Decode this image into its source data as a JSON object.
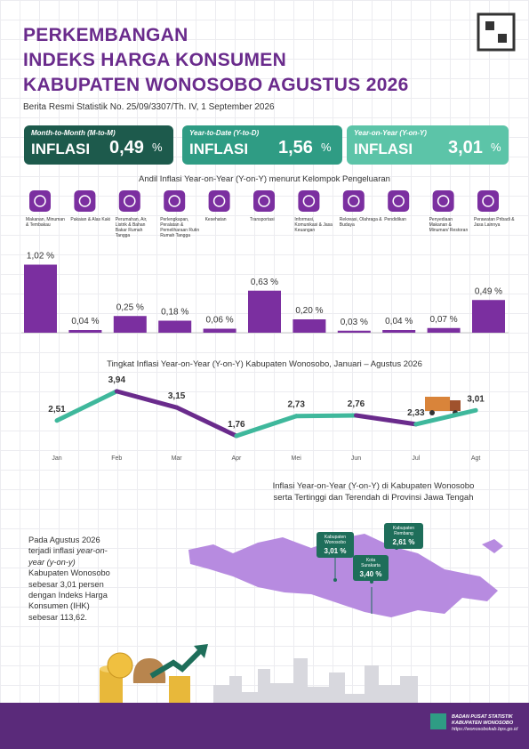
{
  "header": {
    "title": [
      "PERKEMBANGAN",
      "INDEKS HARGA KONSUMEN",
      "KABUPATEN WONOSOBO AGUSTUS 2026"
    ],
    "subtitle": "Berita Resmi Statistik No. 25/09/3307/Th. IV, 1 September 2026"
  },
  "cards": [
    {
      "period": "Month-to-Month (M-to-M)",
      "label": "INFLASI",
      "value": "0,49",
      "unit": "%",
      "color": "#1d5a4c"
    },
    {
      "period": "Year-to-Date (Y-to-D)",
      "label": "INFLASI",
      "value": "1,56",
      "unit": "%",
      "color": "#2f9c84"
    },
    {
      "period": "Year-on-Year (Y-on-Y)",
      "label": "INFLASI",
      "value": "3,01",
      "unit": "%",
      "color": "#5cc4a8"
    }
  ],
  "chart_data": [
    {
      "type": "bar",
      "title": "Andil Inflasi Year-on-Year (Y-on-Y) menurut Kelompok Pengeluaran",
      "categories": [
        "Makanan, Minuman & Tembakau",
        "Pakaian & Alas Kaki",
        "Perumahan, Air, Listrik & Bahan Bakar Rumah Tangga",
        "Perlengkapan, Peralatan & Pemeliharaan Rutin Rumah Tangga",
        "Kesehatan",
        "Transportasi",
        "Informasi, Komunikasi & Jasa Keuangan",
        "Rekreasi, Olahraga & Budaya",
        "Pendidikan",
        "Penyediaan Makanan & Minuman/ Restoran",
        "Perawatan Pribadi & Jasa Lainnya"
      ],
      "values": [
        1.02,
        0.04,
        0.25,
        0.18,
        0.06,
        0.63,
        0.2,
        0.03,
        0.04,
        0.07,
        0.49
      ],
      "value_labels": [
        "1,02 %",
        "0,04 %",
        "0,25 %",
        "0,18 %",
        "0,06 %",
        "0,63 %",
        "0,20 %",
        "0,03 %",
        "0,04 %",
        "0,07 %",
        "0,49 %"
      ],
      "color": "#7b2fa0"
    },
    {
      "type": "line",
      "title": "Tingkat Inflasi Year-on-Year (Y-on-Y) Kabupaten Wonosobo, Januari – Agustus 2026",
      "categories": [
        "Jan",
        "Feb",
        "Mar",
        "Apr",
        "Mei",
        "Jun",
        "Jul",
        "Agt"
      ],
      "values": [
        2.51,
        3.94,
        3.15,
        1.76,
        2.73,
        2.76,
        2.33,
        3.01
      ],
      "value_labels": [
        "2,51",
        "3,94",
        "3,15",
        "1,76",
        "2,73",
        "2,76",
        "2,33",
        "3,01"
      ],
      "up_color": "#3fb89c",
      "down_color": "#6a2b8c"
    }
  ],
  "map": {
    "title": [
      "Inflasi Year-on-Year (Y-on-Y) di Kabupaten Wonosobo",
      "serta Tertinggi dan Terendah di Provinsi Jawa Tengah"
    ],
    "callouts": [
      {
        "name": "Kabupaten Wonosobo",
        "value": "3,01 %"
      },
      {
        "name": "Kota Surakarta",
        "value": "3,40 %"
      },
      {
        "name": "Kabupaten Rembang",
        "value": "2,61 %"
      }
    ]
  },
  "paragraph": [
    "Pada Agustus 2026 terjadi inflasi ",
    "year-on-year (y-on-y)",
    " Kabupaten Wonosobo sebesar 3,01 persen dengan Indeks Harga Konsumen (IHK) sebesar 113,62."
  ],
  "footer": {
    "org": "BADAN PUSAT STATISTIK",
    "region": "KABUPATEN WONOSOBO",
    "url": "https://wonosobokab.bps.go.id"
  }
}
